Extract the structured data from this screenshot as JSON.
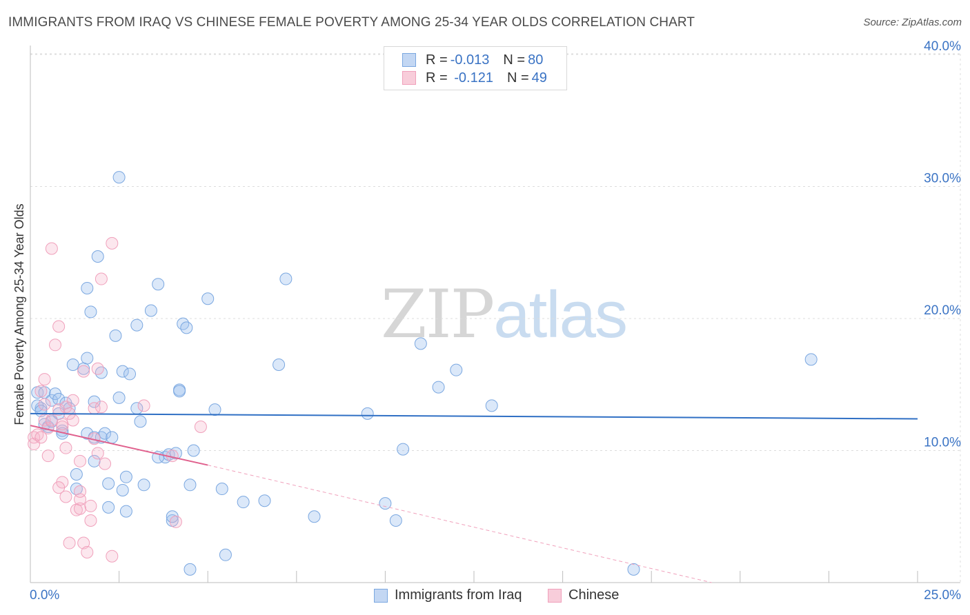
{
  "title": "IMMIGRANTS FROM IRAQ VS CHINESE FEMALE POVERTY AMONG 25-34 YEAR OLDS CORRELATION CHART",
  "source": "Source: ZipAtlas.com",
  "watermark": {
    "zip": "ZIP",
    "atlas": "atlas"
  },
  "legend_top": [
    {
      "r_label": "R = ",
      "r_value": "-0.013",
      "n_label": "N = ",
      "n_value": "80"
    },
    {
      "r_label": "R = ",
      "r_value": " -0.121",
      "n_label": "N = ",
      "n_value": "49"
    }
  ],
  "chart_data": {
    "type": "scatter",
    "title": "IMMIGRANTS FROM IRAQ VS CHINESE FEMALE POVERTY AMONG 25-34 YEAR OLDS CORRELATION CHART",
    "xlabel": "",
    "ylabel": "Female Poverty Among 25-34 Year Olds",
    "xlim": [
      0,
      25
    ],
    "ylim": [
      0,
      40
    ],
    "x_tick_labels": [
      "0.0%",
      "25.0%"
    ],
    "y_ticks": [
      10,
      20,
      30,
      40
    ],
    "y_tick_labels": [
      "10.0%",
      "20.0%",
      "30.0%",
      "40.0%"
    ],
    "grid": true,
    "legend_position": "top-center",
    "colors": {
      "iraq": "#7aa7e0",
      "iraq_line": "#2f6fc4",
      "chinese": "#f0a0bb",
      "chinese_line": "#e0608d",
      "axis_text": "#3a73c4"
    },
    "series": [
      {
        "name": "Immigrants from Iraq",
        "r": -0.013,
        "n": 80,
        "trend": {
          "x": [
            0,
            25
          ],
          "y": [
            12.8,
            12.4
          ]
        },
        "points": [
          [
            0.2,
            14.4
          ],
          [
            0.3,
            13.2
          ],
          [
            0.2,
            13.4
          ],
          [
            0.4,
            12.0
          ],
          [
            0.5,
            11.8
          ],
          [
            0.4,
            14.4
          ],
          [
            0.6,
            13.8
          ],
          [
            0.7,
            14.3
          ],
          [
            0.8,
            12.8
          ],
          [
            0.9,
            11.5
          ],
          [
            0.8,
            13.9
          ],
          [
            0.6,
            12.2
          ],
          [
            1.0,
            13.6
          ],
          [
            1.1,
            13.2
          ],
          [
            0.9,
            11.3
          ],
          [
            1.2,
            16.5
          ],
          [
            1.5,
            16.2
          ],
          [
            1.6,
            17.0
          ],
          [
            1.6,
            11.3
          ],
          [
            1.8,
            13.7
          ],
          [
            1.8,
            11.0
          ],
          [
            2.0,
            15.9
          ],
          [
            2.0,
            11.0
          ],
          [
            2.1,
            11.3
          ],
          [
            2.3,
            11.0
          ],
          [
            2.5,
            14.0
          ],
          [
            2.6,
            16.0
          ],
          [
            2.8,
            15.8
          ],
          [
            3.0,
            13.2
          ],
          [
            3.1,
            12.2
          ],
          [
            3.0,
            19.5
          ],
          [
            3.4,
            20.6
          ],
          [
            3.6,
            22.6
          ],
          [
            3.8,
            9.5
          ],
          [
            3.9,
            9.7
          ],
          [
            4.1,
            9.8
          ],
          [
            4.2,
            14.6
          ],
          [
            4.2,
            14.5
          ],
          [
            4.3,
            19.6
          ],
          [
            4.4,
            19.3
          ],
          [
            4.5,
            7.4
          ],
          [
            4.6,
            10.0
          ],
          [
            5.0,
            21.5
          ],
          [
            5.2,
            13.1
          ],
          [
            5.4,
            7.1
          ],
          [
            4.0,
            4.7
          ],
          [
            4.0,
            5.0
          ],
          [
            4.5,
            1.0
          ],
          [
            5.5,
            2.1
          ],
          [
            6.0,
            6.1
          ],
          [
            6.6,
            6.2
          ],
          [
            7.0,
            16.5
          ],
          [
            7.2,
            23.0
          ],
          [
            8.0,
            5.0
          ],
          [
            2.5,
            30.7
          ],
          [
            1.9,
            24.7
          ],
          [
            1.6,
            22.3
          ],
          [
            1.7,
            20.5
          ],
          [
            2.4,
            18.7
          ],
          [
            1.3,
            7.1
          ],
          [
            1.3,
            8.2
          ],
          [
            1.8,
            9.2
          ],
          [
            2.2,
            5.7
          ],
          [
            2.2,
            7.5
          ],
          [
            2.6,
            7.0
          ],
          [
            2.7,
            8.0
          ],
          [
            2.7,
            5.4
          ],
          [
            3.2,
            7.4
          ],
          [
            3.6,
            9.5
          ],
          [
            9.5,
            12.8
          ],
          [
            10.0,
            6.0
          ],
          [
            10.5,
            10.1
          ],
          [
            10.3,
            4.7
          ],
          [
            11.0,
            18.1
          ],
          [
            11.5,
            14.8
          ],
          [
            12.0,
            16.1
          ],
          [
            13.0,
            13.4
          ],
          [
            17.0,
            1.0
          ],
          [
            22.0,
            16.9
          ],
          [
            0.3,
            13.0
          ]
        ]
      },
      {
        "name": "Chinese",
        "r": -0.121,
        "n": 49,
        "trend": {
          "x": [
            0,
            5
          ],
          "y": [
            11.9,
            8.9
          ]
        },
        "trend_dashed": {
          "x": [
            5,
            19.2
          ],
          "y": [
            8.9,
            0.0
          ]
        },
        "points": [
          [
            0.1,
            11.0
          ],
          [
            0.1,
            10.5
          ],
          [
            0.2,
            11.2
          ],
          [
            0.3,
            11.0
          ],
          [
            0.3,
            14.5
          ],
          [
            0.4,
            13.5
          ],
          [
            0.4,
            12.3
          ],
          [
            0.5,
            11.7
          ],
          [
            0.5,
            9.6
          ],
          [
            0.6,
            25.3
          ],
          [
            0.6,
            12.3
          ],
          [
            0.7,
            18.0
          ],
          [
            0.8,
            19.4
          ],
          [
            0.8,
            13.1
          ],
          [
            0.9,
            11.8
          ],
          [
            0.9,
            12.0
          ],
          [
            0.9,
            7.6
          ],
          [
            0.8,
            7.2
          ],
          [
            1.0,
            6.5
          ],
          [
            1.0,
            10.2
          ],
          [
            1.0,
            13.3
          ],
          [
            1.1,
            12.8
          ],
          [
            1.2,
            13.8
          ],
          [
            1.1,
            3.0
          ],
          [
            1.2,
            12.3
          ],
          [
            1.3,
            5.5
          ],
          [
            1.4,
            5.6
          ],
          [
            1.4,
            6.3
          ],
          [
            1.4,
            6.9
          ],
          [
            1.5,
            3.0
          ],
          [
            1.4,
            9.2
          ],
          [
            1.5,
            16.0
          ],
          [
            1.6,
            2.3
          ],
          [
            1.7,
            5.8
          ],
          [
            1.7,
            4.7
          ],
          [
            1.8,
            10.9
          ],
          [
            1.8,
            13.2
          ],
          [
            1.9,
            16.2
          ],
          [
            1.9,
            9.8
          ],
          [
            2.0,
            23.0
          ],
          [
            2.0,
            13.3
          ],
          [
            2.1,
            9.0
          ],
          [
            2.3,
            25.7
          ],
          [
            2.3,
            2.0
          ],
          [
            3.2,
            13.4
          ],
          [
            4.0,
            9.6
          ],
          [
            4.1,
            4.6
          ],
          [
            4.8,
            11.8
          ],
          [
            0.4,
            15.4
          ]
        ]
      }
    ]
  },
  "legend_bottom": [
    "Immigrants from Iraq",
    "Chinese"
  ]
}
